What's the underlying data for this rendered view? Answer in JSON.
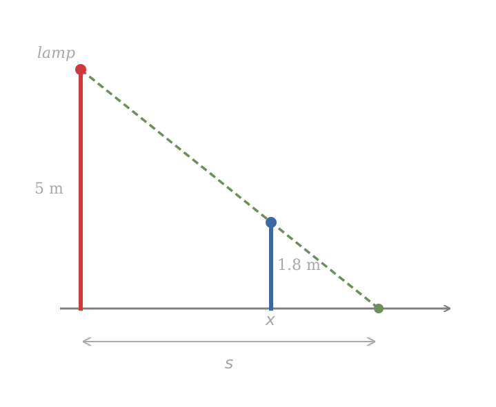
{
  "labels": {
    "lamp": "lamp",
    "lamp_height": "5 m",
    "person_height": "1.8 m",
    "person_position": "x",
    "shadow_tip_distance": "s"
  },
  "colors": {
    "lamp_post": "#cc3a3a",
    "person": "#3a6aa6",
    "shadow_ray": "#6b8e5a",
    "ground": "#7f7f7f",
    "label_text": "#a8a8a8",
    "dimension_arrow": "#a8a8a8"
  },
  "quantities": {
    "lamp_height_m": 5,
    "person_height_m": 1.8
  }
}
